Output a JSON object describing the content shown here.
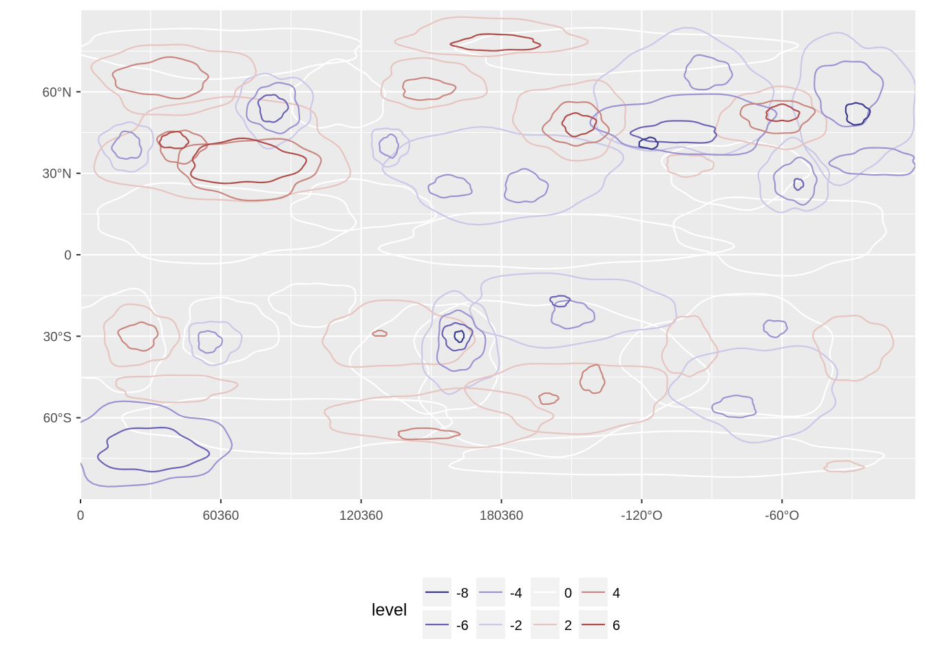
{
  "chart_data": {
    "type": "contour",
    "title": "",
    "xlabel": "",
    "ylabel": "",
    "x_ticks": [
      {
        "value": 0,
        "label": "0"
      },
      {
        "value": 60,
        "label": "60360"
      },
      {
        "value": 120,
        "label": "120360"
      },
      {
        "value": 180,
        "label": "180360"
      },
      {
        "value": 240,
        "label": "-120°O"
      },
      {
        "value": 300,
        "label": "-60°O"
      }
    ],
    "y_ticks": [
      {
        "value": 60,
        "label": "60°N"
      },
      {
        "value": 30,
        "label": "30°N"
      },
      {
        "value": 0,
        "label": "0"
      },
      {
        "value": -30,
        "label": "30°S"
      },
      {
        "value": -60,
        "label": "60°S"
      }
    ],
    "xlim": [
      0,
      357
    ],
    "ylim": [
      -90,
      90
    ],
    "legend": {
      "title": "level",
      "position": "bottom",
      "entries": [
        {
          "label": "-8",
          "color": "#3b3b91"
        },
        {
          "label": "-6",
          "color": "#6b63b5"
        },
        {
          "label": "-4",
          "color": "#9b94d1"
        },
        {
          "label": "-2",
          "color": "#cbc7e8"
        },
        {
          "label": "0",
          "color": "#ffffff"
        },
        {
          "label": "2",
          "color": "#e7c4bf"
        },
        {
          "label": "4",
          "color": "#c98780"
        },
        {
          "label": "6",
          "color": "#b14d4a"
        }
      ]
    },
    "contours": [
      {
        "level": 6,
        "lon": 40,
        "lat": 42,
        "rx": 6,
        "ry": 3
      },
      {
        "level": 4,
        "lon": 43,
        "lat": 40,
        "rx": 10,
        "ry": 6
      },
      {
        "level": 6,
        "lon": 70,
        "lat": 34,
        "rx": 24,
        "ry": 8
      },
      {
        "level": 4,
        "lon": 72,
        "lat": 32,
        "rx": 30,
        "ry": 11
      },
      {
        "level": 2,
        "lon": 62,
        "lat": 38,
        "rx": 52,
        "ry": 19
      },
      {
        "level": 4,
        "lon": 35,
        "lat": 65,
        "rx": 20,
        "ry": 7
      },
      {
        "level": 2,
        "lon": 40,
        "lat": 65,
        "rx": 33,
        "ry": 13
      },
      {
        "level": -6,
        "lon": 82,
        "lat": 54,
        "rx": 6,
        "ry": 5
      },
      {
        "level": -4,
        "lon": 83,
        "lat": 54,
        "rx": 11,
        "ry": 9
      },
      {
        "level": -2,
        "lon": 83,
        "lat": 54,
        "rx": 16,
        "ry": 13
      },
      {
        "level": -4,
        "lon": 20,
        "lat": 40,
        "rx": 6,
        "ry": 5
      },
      {
        "level": -2,
        "lon": 20,
        "lat": 40,
        "rx": 11,
        "ry": 9
      },
      {
        "level": 6,
        "lon": 178,
        "lat": 78,
        "rx": 18,
        "ry": 3
      },
      {
        "level": 2,
        "lon": 175,
        "lat": 80,
        "rx": 38,
        "ry": 7
      },
      {
        "level": 4,
        "lon": 148,
        "lat": 61,
        "rx": 11,
        "ry": 4
      },
      {
        "level": 2,
        "lon": 150,
        "lat": 63,
        "rx": 22,
        "ry": 9
      },
      {
        "level": -4,
        "lon": 132,
        "lat": 40,
        "rx": 4,
        "ry": 4
      },
      {
        "level": -2,
        "lon": 132,
        "lat": 40,
        "rx": 8,
        "ry": 7
      },
      {
        "level": -4,
        "lon": 158,
        "lat": 25,
        "rx": 9,
        "ry": 4
      },
      {
        "level": -4,
        "lon": 190,
        "lat": 25,
        "rx": 9,
        "ry": 6
      },
      {
        "level": -2,
        "lon": 180,
        "lat": 30,
        "rx": 48,
        "ry": 17
      },
      {
        "level": 6,
        "lon": 213,
        "lat": 48,
        "rx": 7,
        "ry": 4
      },
      {
        "level": 4,
        "lon": 212,
        "lat": 48,
        "rx": 13,
        "ry": 8
      },
      {
        "level": 2,
        "lon": 210,
        "lat": 50,
        "rx": 24,
        "ry": 14
      },
      {
        "level": -8,
        "lon": 243,
        "lat": 41,
        "rx": 4,
        "ry": 2
      },
      {
        "level": -6,
        "lon": 255,
        "lat": 45,
        "rx": 18,
        "ry": 4
      },
      {
        "level": -4,
        "lon": 260,
        "lat": 48,
        "rx": 38,
        "ry": 11
      },
      {
        "level": -2,
        "lon": 258,
        "lat": 58,
        "rx": 38,
        "ry": 22
      },
      {
        "level": -4,
        "lon": 268,
        "lat": 67,
        "rx": 10,
        "ry": 6
      },
      {
        "level": 6,
        "lon": 300,
        "lat": 52,
        "rx": 7,
        "ry": 3
      },
      {
        "level": 4,
        "lon": 298,
        "lat": 51,
        "rx": 15,
        "ry": 6
      },
      {
        "level": 2,
        "lon": 296,
        "lat": 50,
        "rx": 23,
        "ry": 11
      },
      {
        "level": -6,
        "lon": 307,
        "lat": 26,
        "rx": 2,
        "ry": 2
      },
      {
        "level": -4,
        "lon": 306,
        "lat": 27,
        "rx": 9,
        "ry": 8
      },
      {
        "level": -2,
        "lon": 305,
        "lat": 28,
        "rx": 15,
        "ry": 13
      },
      {
        "level": -8,
        "lon": 332,
        "lat": 52,
        "rx": 5,
        "ry": 4
      },
      {
        "level": -4,
        "lon": 328,
        "lat": 60,
        "rx": 14,
        "ry": 12
      },
      {
        "level": -4,
        "lon": 340,
        "lat": 34,
        "rx": 18,
        "ry": 5
      },
      {
        "level": -2,
        "lon": 330,
        "lat": 55,
        "rx": 26,
        "ry": 26
      },
      {
        "level": 2,
        "lon": 260,
        "lat": 33,
        "rx": 10,
        "ry": 4
      },
      {
        "level": -8,
        "lon": 162,
        "lat": -30,
        "rx": 2,
        "ry": 2
      },
      {
        "level": -6,
        "lon": 161,
        "lat": -30,
        "rx": 6,
        "ry": 5
      },
      {
        "level": -4,
        "lon": 162,
        "lat": -32,
        "rx": 10,
        "ry": 11
      },
      {
        "level": -2,
        "lon": 162,
        "lat": -33,
        "rx": 16,
        "ry": 18
      },
      {
        "level": 4,
        "lon": 128,
        "lat": -29,
        "rx": 3,
        "ry": 1
      },
      {
        "level": 2,
        "lon": 135,
        "lat": -30,
        "rx": 32,
        "ry": 12
      },
      {
        "level": -4,
        "lon": 210,
        "lat": -22,
        "rx": 9,
        "ry": 5
      },
      {
        "level": -6,
        "lon": 205,
        "lat": -17,
        "rx": 4,
        "ry": 2
      },
      {
        "level": -2,
        "lon": 208,
        "lat": -20,
        "rx": 44,
        "ry": 13
      },
      {
        "level": 4,
        "lon": 219,
        "lat": -46,
        "rx": 5,
        "ry": 5
      },
      {
        "level": 4,
        "lon": 200,
        "lat": -53,
        "rx": 4,
        "ry": 2
      },
      {
        "level": 2,
        "lon": 210,
        "lat": -52,
        "rx": 42,
        "ry": 13
      },
      {
        "level": 4,
        "lon": 148,
        "lat": -66,
        "rx": 13,
        "ry": 2
      },
      {
        "level": 2,
        "lon": 155,
        "lat": -60,
        "rx": 48,
        "ry": 10
      },
      {
        "level": 4,
        "lon": 25,
        "lat": -30,
        "rx": 8,
        "ry": 5
      },
      {
        "level": 2,
        "lon": 25,
        "lat": -30,
        "rx": 16,
        "ry": 11
      },
      {
        "level": -4,
        "lon": 55,
        "lat": -32,
        "rx": 5,
        "ry": 4
      },
      {
        "level": -2,
        "lon": 57,
        "lat": -32,
        "rx": 11,
        "ry": 8
      },
      {
        "level": -6,
        "lon": 30,
        "lat": -72,
        "rx": 22,
        "ry": 8
      },
      {
        "level": -4,
        "lon": 28,
        "lat": -70,
        "rx": 34,
        "ry": 15
      },
      {
        "level": 2,
        "lon": 40,
        "lat": -49,
        "rx": 25,
        "ry": 5
      },
      {
        "level": -4,
        "lon": 297,
        "lat": -27,
        "rx": 5,
        "ry": 3
      },
      {
        "level": -4,
        "lon": 280,
        "lat": -56,
        "rx": 9,
        "ry": 4
      },
      {
        "level": -2,
        "lon": 290,
        "lat": -50,
        "rx": 35,
        "ry": 17
      },
      {
        "level": 2,
        "lon": 260,
        "lat": -34,
        "rx": 11,
        "ry": 11
      },
      {
        "level": 2,
        "lon": 330,
        "lat": -34,
        "rx": 16,
        "ry": 12
      },
      {
        "level": 2,
        "lon": 326,
        "lat": -78,
        "rx": 8,
        "ry": 2
      },
      {
        "level": 0,
        "lon": 15,
        "lat": -32,
        "rx": 22,
        "ry": 18
      },
      {
        "level": 0,
        "lon": 63,
        "lat": -28,
        "rx": 20,
        "ry": 12
      },
      {
        "level": 0,
        "lon": 100,
        "lat": -18,
        "rx": 18,
        "ry": 8
      },
      {
        "level": 0,
        "lon": 150,
        "lat": -38,
        "rx": 30,
        "ry": 20
      },
      {
        "level": 0,
        "lon": 200,
        "lat": -44,
        "rx": 60,
        "ry": 28
      },
      {
        "level": 0,
        "lon": 280,
        "lat": -38,
        "rx": 45,
        "ry": 22
      },
      {
        "level": 0,
        "lon": 90,
        "lat": -62,
        "rx": 70,
        "ry": 10
      },
      {
        "level": 0,
        "lon": 250,
        "lat": -74,
        "rx": 90,
        "ry": 8
      },
      {
        "level": 0,
        "lon": 60,
        "lat": 12,
        "rx": 55,
        "ry": 14
      },
      {
        "level": 0,
        "lon": 200,
        "lat": 5,
        "rx": 70,
        "ry": 10
      },
      {
        "level": 0,
        "lon": 300,
        "lat": 8,
        "rx": 45,
        "ry": 14
      },
      {
        "level": 0,
        "lon": 120,
        "lat": 18,
        "rx": 30,
        "ry": 9
      },
      {
        "level": 0,
        "lon": 230,
        "lat": 75,
        "rx": 70,
        "ry": 8
      },
      {
        "level": 0,
        "lon": 60,
        "lat": 75,
        "rx": 60,
        "ry": 9
      },
      {
        "level": 0,
        "lon": 110,
        "lat": 58,
        "rx": 20,
        "ry": 12
      },
      {
        "level": 0,
        "lon": 280,
        "lat": 30,
        "rx": 30,
        "ry": 12
      }
    ]
  }
}
